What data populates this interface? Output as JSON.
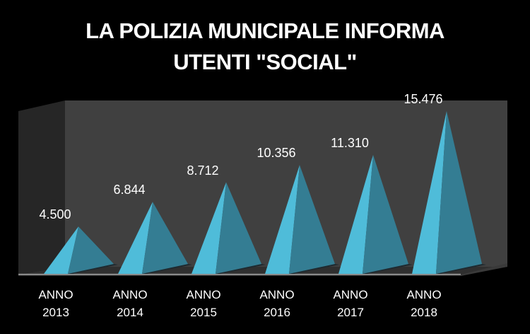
{
  "title": {
    "line1": "LA POLIZIA MUNICIPALE INFORMA",
    "line2": "UTENTI \"SOCIAL\""
  },
  "colors": {
    "background": "#000000",
    "back_wall": "#404040",
    "side_wall": "#262626",
    "floor": "#2f2f2f",
    "floor_edge": "#8a8a8a",
    "pyramid_light": "#4fbcd9",
    "pyramid_dark": "#347d93",
    "text": "#ffffff"
  },
  "chart_data": {
    "type": "bar",
    "style": "3d-pyramid",
    "title": "LA POLIZIA MUNICIPALE INFORMA UTENTI \"SOCIAL\"",
    "xlabel": "",
    "ylabel": "",
    "grid": false,
    "legend": null,
    "categories": [
      "ANNO 2013",
      "ANNO 2014",
      "ANNO 2015",
      "ANNO 2016",
      "ANNO 2017",
      "ANNO 2018"
    ],
    "values": [
      4500,
      6844,
      8712,
      10356,
      11310,
      15476
    ],
    "value_labels": [
      "4.500",
      "6.844",
      "8.712",
      "10.356",
      "11.310",
      "15.476"
    ]
  },
  "bars": [
    {
      "line1": "ANNO",
      "line2": "2013",
      "label": "4.500"
    },
    {
      "line1": "ANNO",
      "line2": "2014",
      "label": "6.844"
    },
    {
      "line1": "ANNO",
      "line2": "2015",
      "label": "8.712"
    },
    {
      "line1": "ANNO",
      "line2": "2016",
      "label": "10.356"
    },
    {
      "line1": "ANNO",
      "line2": "2017",
      "label": "11.310"
    },
    {
      "line1": "ANNO",
      "line2": "2018",
      "label": "15.476"
    }
  ]
}
